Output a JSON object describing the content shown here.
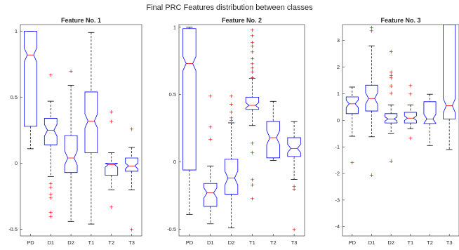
{
  "title": "Final PRC Features distribution between classes",
  "colors": {
    "box": "#0000ff",
    "median": "#ff0000",
    "whisker": "#000000",
    "outlier": "#ff0000"
  },
  "chart_data": [
    {
      "type": "box",
      "title": "Feature No. 1",
      "categories": [
        "PD",
        "D1",
        "D2",
        "T1",
        "T2",
        "T3"
      ],
      "ylim": [
        -0.55,
        1.05
      ],
      "yticks": [
        -0.5,
        0,
        0.5,
        1
      ],
      "ytick_labels": [
        "-0.5",
        "0",
        "0.5",
        "1"
      ],
      "boxes": [
        {
          "min": 0.11,
          "q1": 0.28,
          "median": 0.82,
          "q3": 1.0,
          "max": 1.0,
          "outliers": []
        },
        {
          "min": -0.1,
          "q1": 0.14,
          "median": 0.25,
          "q3": 0.34,
          "max": 0.47,
          "outliers": [
            0.67,
            -0.15,
            -0.18,
            -0.23,
            -0.26,
            -0.37,
            -0.4
          ]
        },
        {
          "min": -0.44,
          "q1": -0.07,
          "median": 0.04,
          "q3": 0.21,
          "max": 0.59,
          "outliers": [
            0.7
          ]
        },
        {
          "min": -0.46,
          "q1": 0.08,
          "median": 0.32,
          "q3": 0.54,
          "max": 0.99,
          "outliers": []
        },
        {
          "min": -0.2,
          "q1": -0.09,
          "median": -0.01,
          "q3": 0.0,
          "max": 0.08,
          "outliers": [
            0.39,
            0.32,
            -0.33
          ]
        },
        {
          "min": -0.2,
          "q1": -0.06,
          "median": -0.02,
          "q3": 0.04,
          "max": 0.12,
          "outliers": [
            0.26,
            -0.5
          ]
        }
      ]
    },
    {
      "type": "box",
      "title": "Feature No. 2",
      "categories": [
        "PD",
        "D1",
        "D2",
        "T1",
        "T2",
        "T3"
      ],
      "ylim": [
        -0.55,
        1.02
      ],
      "yticks": [
        -0.5,
        0,
        0.5,
        1
      ],
      "ytick_labels": [
        "-0.5",
        "0",
        "0.5",
        "1"
      ],
      "boxes": [
        {
          "min": -0.39,
          "q1": -0.06,
          "median": 0.73,
          "q3": 0.99,
          "max": 1.0,
          "outliers": []
        },
        {
          "min": -0.46,
          "q1": -0.33,
          "median": -0.23,
          "q3": -0.16,
          "max": -0.03,
          "outliers": [
            0.49,
            0.26,
            0.17
          ]
        },
        {
          "min": -0.49,
          "q1": -0.24,
          "median": -0.12,
          "q3": 0.02,
          "max": 0.29,
          "outliers": [
            0.49,
            0.43,
            0.37,
            0.33,
            0.31
          ]
        },
        {
          "min": 0.27,
          "q1": 0.39,
          "median": 0.42,
          "q3": 0.48,
          "max": 0.62,
          "outliers": [
            0.98,
            0.94,
            0.89,
            0.86,
            0.82,
            0.77,
            0.73,
            0.7,
            0.67,
            0.63,
            0.14,
            0.07,
            -0.13,
            -0.17,
            -0.27
          ]
        },
        {
          "min": 0.01,
          "q1": 0.03,
          "median": 0.18,
          "q3": 0.3,
          "max": 0.45,
          "outliers": []
        },
        {
          "min": -0.13,
          "q1": 0.04,
          "median": 0.1,
          "q3": 0.18,
          "max": 0.3,
          "outliers": [
            -0.18,
            -0.2,
            -0.5
          ]
        }
      ]
    },
    {
      "type": "box",
      "title": "Feature No. 3",
      "categories": [
        "PD",
        "D1",
        "D2",
        "T1",
        "T2",
        "T3"
      ],
      "ylim": [
        -4.35,
        3.6
      ],
      "yticks": [
        -4,
        -3,
        -2,
        -1,
        0,
        1,
        2,
        3
      ],
      "ytick_labels": [
        "-4",
        "-3",
        "-2",
        "-1",
        "0",
        "1",
        "2",
        "3"
      ],
      "boxes": [
        {
          "min": -0.6,
          "q1": 0.25,
          "median": 0.62,
          "q3": 0.88,
          "max": 1.25,
          "outliers": [
            -1.58
          ]
        },
        {
          "min": -0.62,
          "q1": 0.35,
          "median": 0.82,
          "q3": 1.32,
          "max": 2.8,
          "outliers": [
            3.5,
            3.38,
            -2.05
          ]
        },
        {
          "min": -0.5,
          "q1": -0.1,
          "median": 0.05,
          "q3": 0.25,
          "max": 0.58,
          "outliers": [
            2.6,
            1.82,
            1.7,
            1.6,
            1.3,
            1.02,
            -1.52
          ]
        },
        {
          "min": -0.32,
          "q1": -0.1,
          "median": 0.08,
          "q3": 0.3,
          "max": 0.58,
          "outliers": [
            1.0,
            1.32,
            -0.66
          ]
        },
        {
          "min": -0.95,
          "q1": -0.12,
          "median": 0.05,
          "q3": 0.7,
          "max": 0.98,
          "outliers": []
        },
        {
          "min": -1.1,
          "q1": 0.05,
          "median": 0.55,
          "q3": 3.6,
          "max": 3.6,
          "outliers": []
        }
      ]
    }
  ]
}
